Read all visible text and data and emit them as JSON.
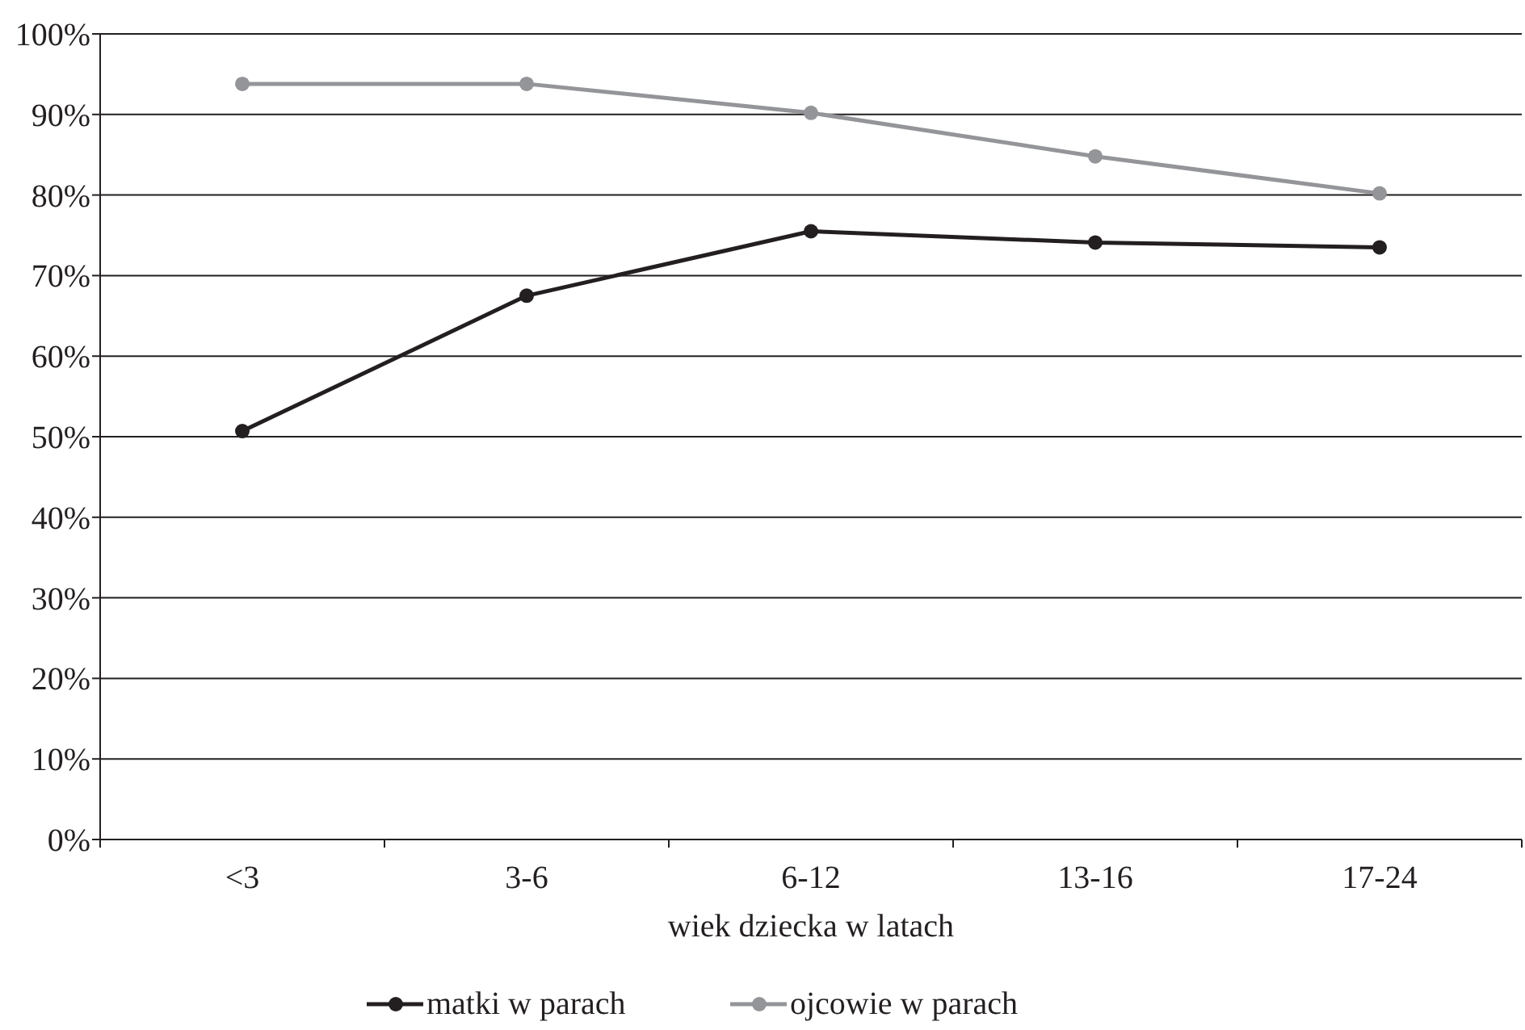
{
  "chart_data": {
    "type": "line",
    "xlabel": "wiek dziecka w latach",
    "categories": [
      "<3",
      "3-6",
      "6-12",
      "13-16",
      "17-24"
    ],
    "series": [
      {
        "name": "matki w parach",
        "color": "#231f20",
        "values": [
          50.7,
          67.5,
          75.5,
          74.1,
          73.5
        ]
      },
      {
        "name": "ojcowie w parach",
        "color": "#939598",
        "values": [
          93.8,
          93.8,
          90.2,
          84.8,
          80.2
        ]
      }
    ],
    "ylim": [
      0,
      100
    ],
    "yticks": [
      {
        "value": 0,
        "label": "0%"
      },
      {
        "value": 10,
        "label": "10%"
      },
      {
        "value": 20,
        "label": "20%"
      },
      {
        "value": 30,
        "label": "30%"
      },
      {
        "value": 40,
        "label": "40%"
      },
      {
        "value": 50,
        "label": "50%"
      },
      {
        "value": 60,
        "label": "60%"
      },
      {
        "value": 70,
        "label": "70%"
      },
      {
        "value": 80,
        "label": "80%"
      },
      {
        "value": 90,
        "label": "90%"
      },
      {
        "value": 100,
        "label": "100%"
      }
    ],
    "grid": "y",
    "legend": "bottom",
    "marker": "circle",
    "line_style": "solid"
  }
}
